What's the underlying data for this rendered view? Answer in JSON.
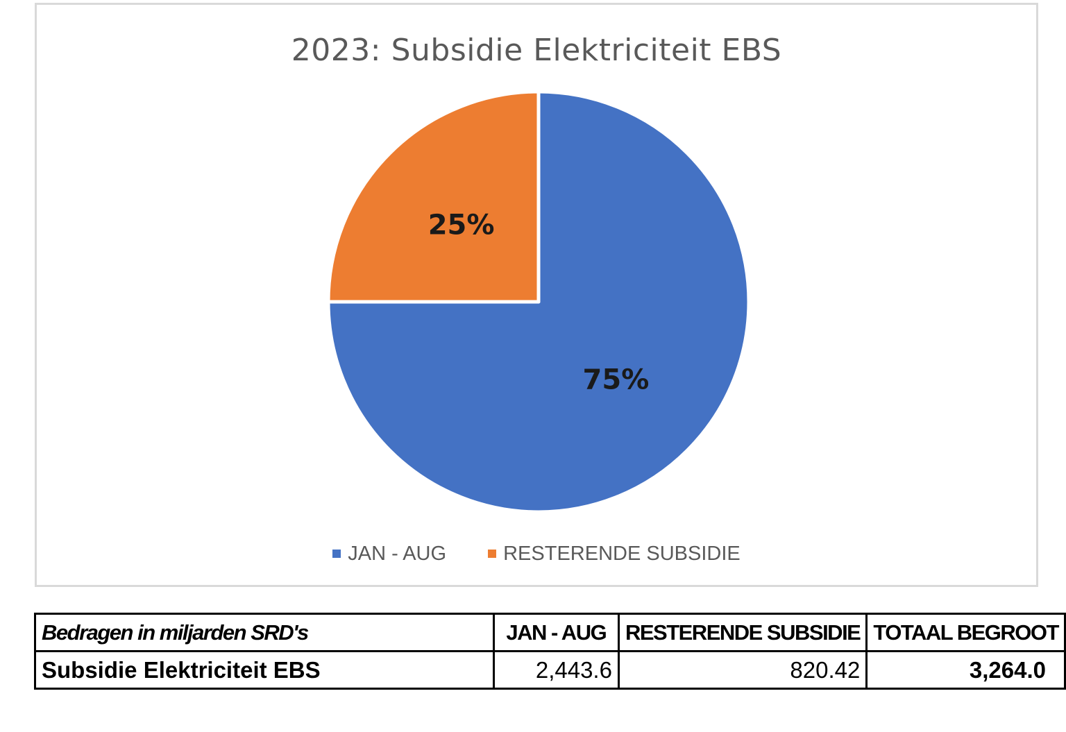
{
  "chart_data": {
    "type": "pie",
    "title": "2023: Subsidie Elektriciteit EBS",
    "categories": [
      "JAN - AUG",
      "RESTERENDE SUBSIDIE"
    ],
    "values": [
      75,
      25
    ],
    "labels": [
      "75%",
      "25%"
    ],
    "colors": [
      "#4472c4",
      "#ed7d31"
    ],
    "legend_position": "bottom"
  },
  "table": {
    "caption": "Bedragen in miljarden SRD's",
    "headers": [
      "JAN - AUG",
      "RESTERENDE SUBSIDIE",
      "TOTAAL BEGROOT"
    ],
    "row": {
      "label": "Subsidie Elektriciteit EBS",
      "jan_aug": "2,443.6",
      "resterende": "820.42",
      "totaal": "3,264.0"
    }
  }
}
